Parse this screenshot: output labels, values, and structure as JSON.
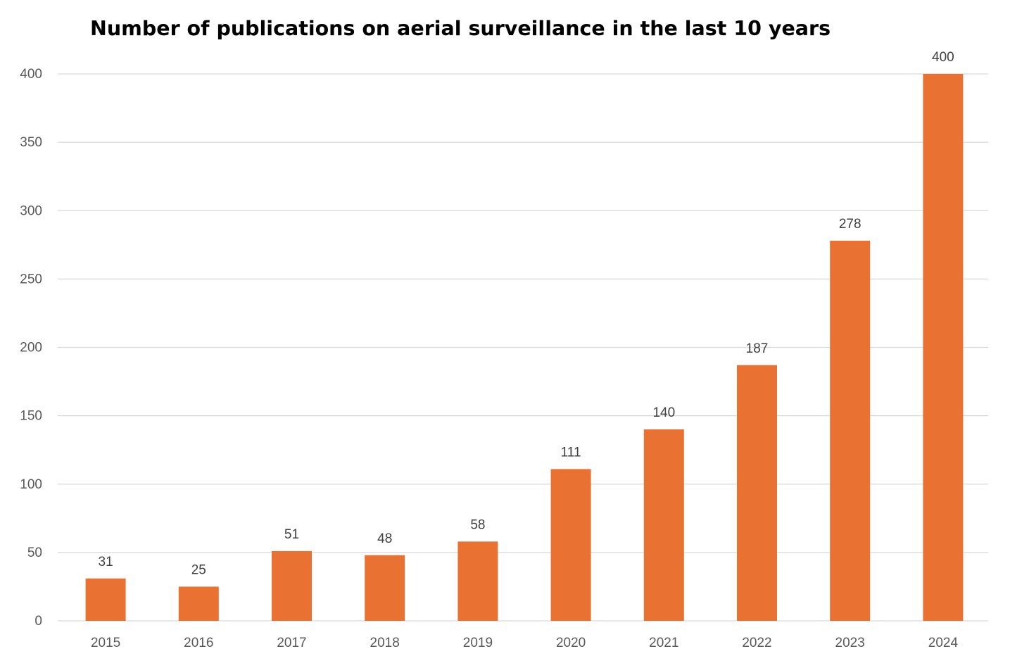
{
  "chart_data": {
    "type": "bar",
    "title": "Number of publications on aerial surveillance in the last 10 years",
    "xlabel": "",
    "ylabel": "",
    "categories": [
      "2015",
      "2016",
      "2017",
      "2018",
      "2019",
      "2020",
      "2021",
      "2022",
      "2023",
      "2024"
    ],
    "values": [
      31,
      25,
      51,
      48,
      58,
      111,
      140,
      187,
      278,
      400
    ],
    "ylim": [
      0,
      400
    ],
    "yticks": [
      0,
      50,
      100,
      150,
      200,
      250,
      300,
      350,
      400
    ],
    "grid": true,
    "legend": "none",
    "data_labels": true,
    "colors": {
      "bar": "#E97132",
      "grid": "#D9D9D9",
      "tick_text": "#595959",
      "label_text": "#404040",
      "title_text": "#000000"
    }
  }
}
